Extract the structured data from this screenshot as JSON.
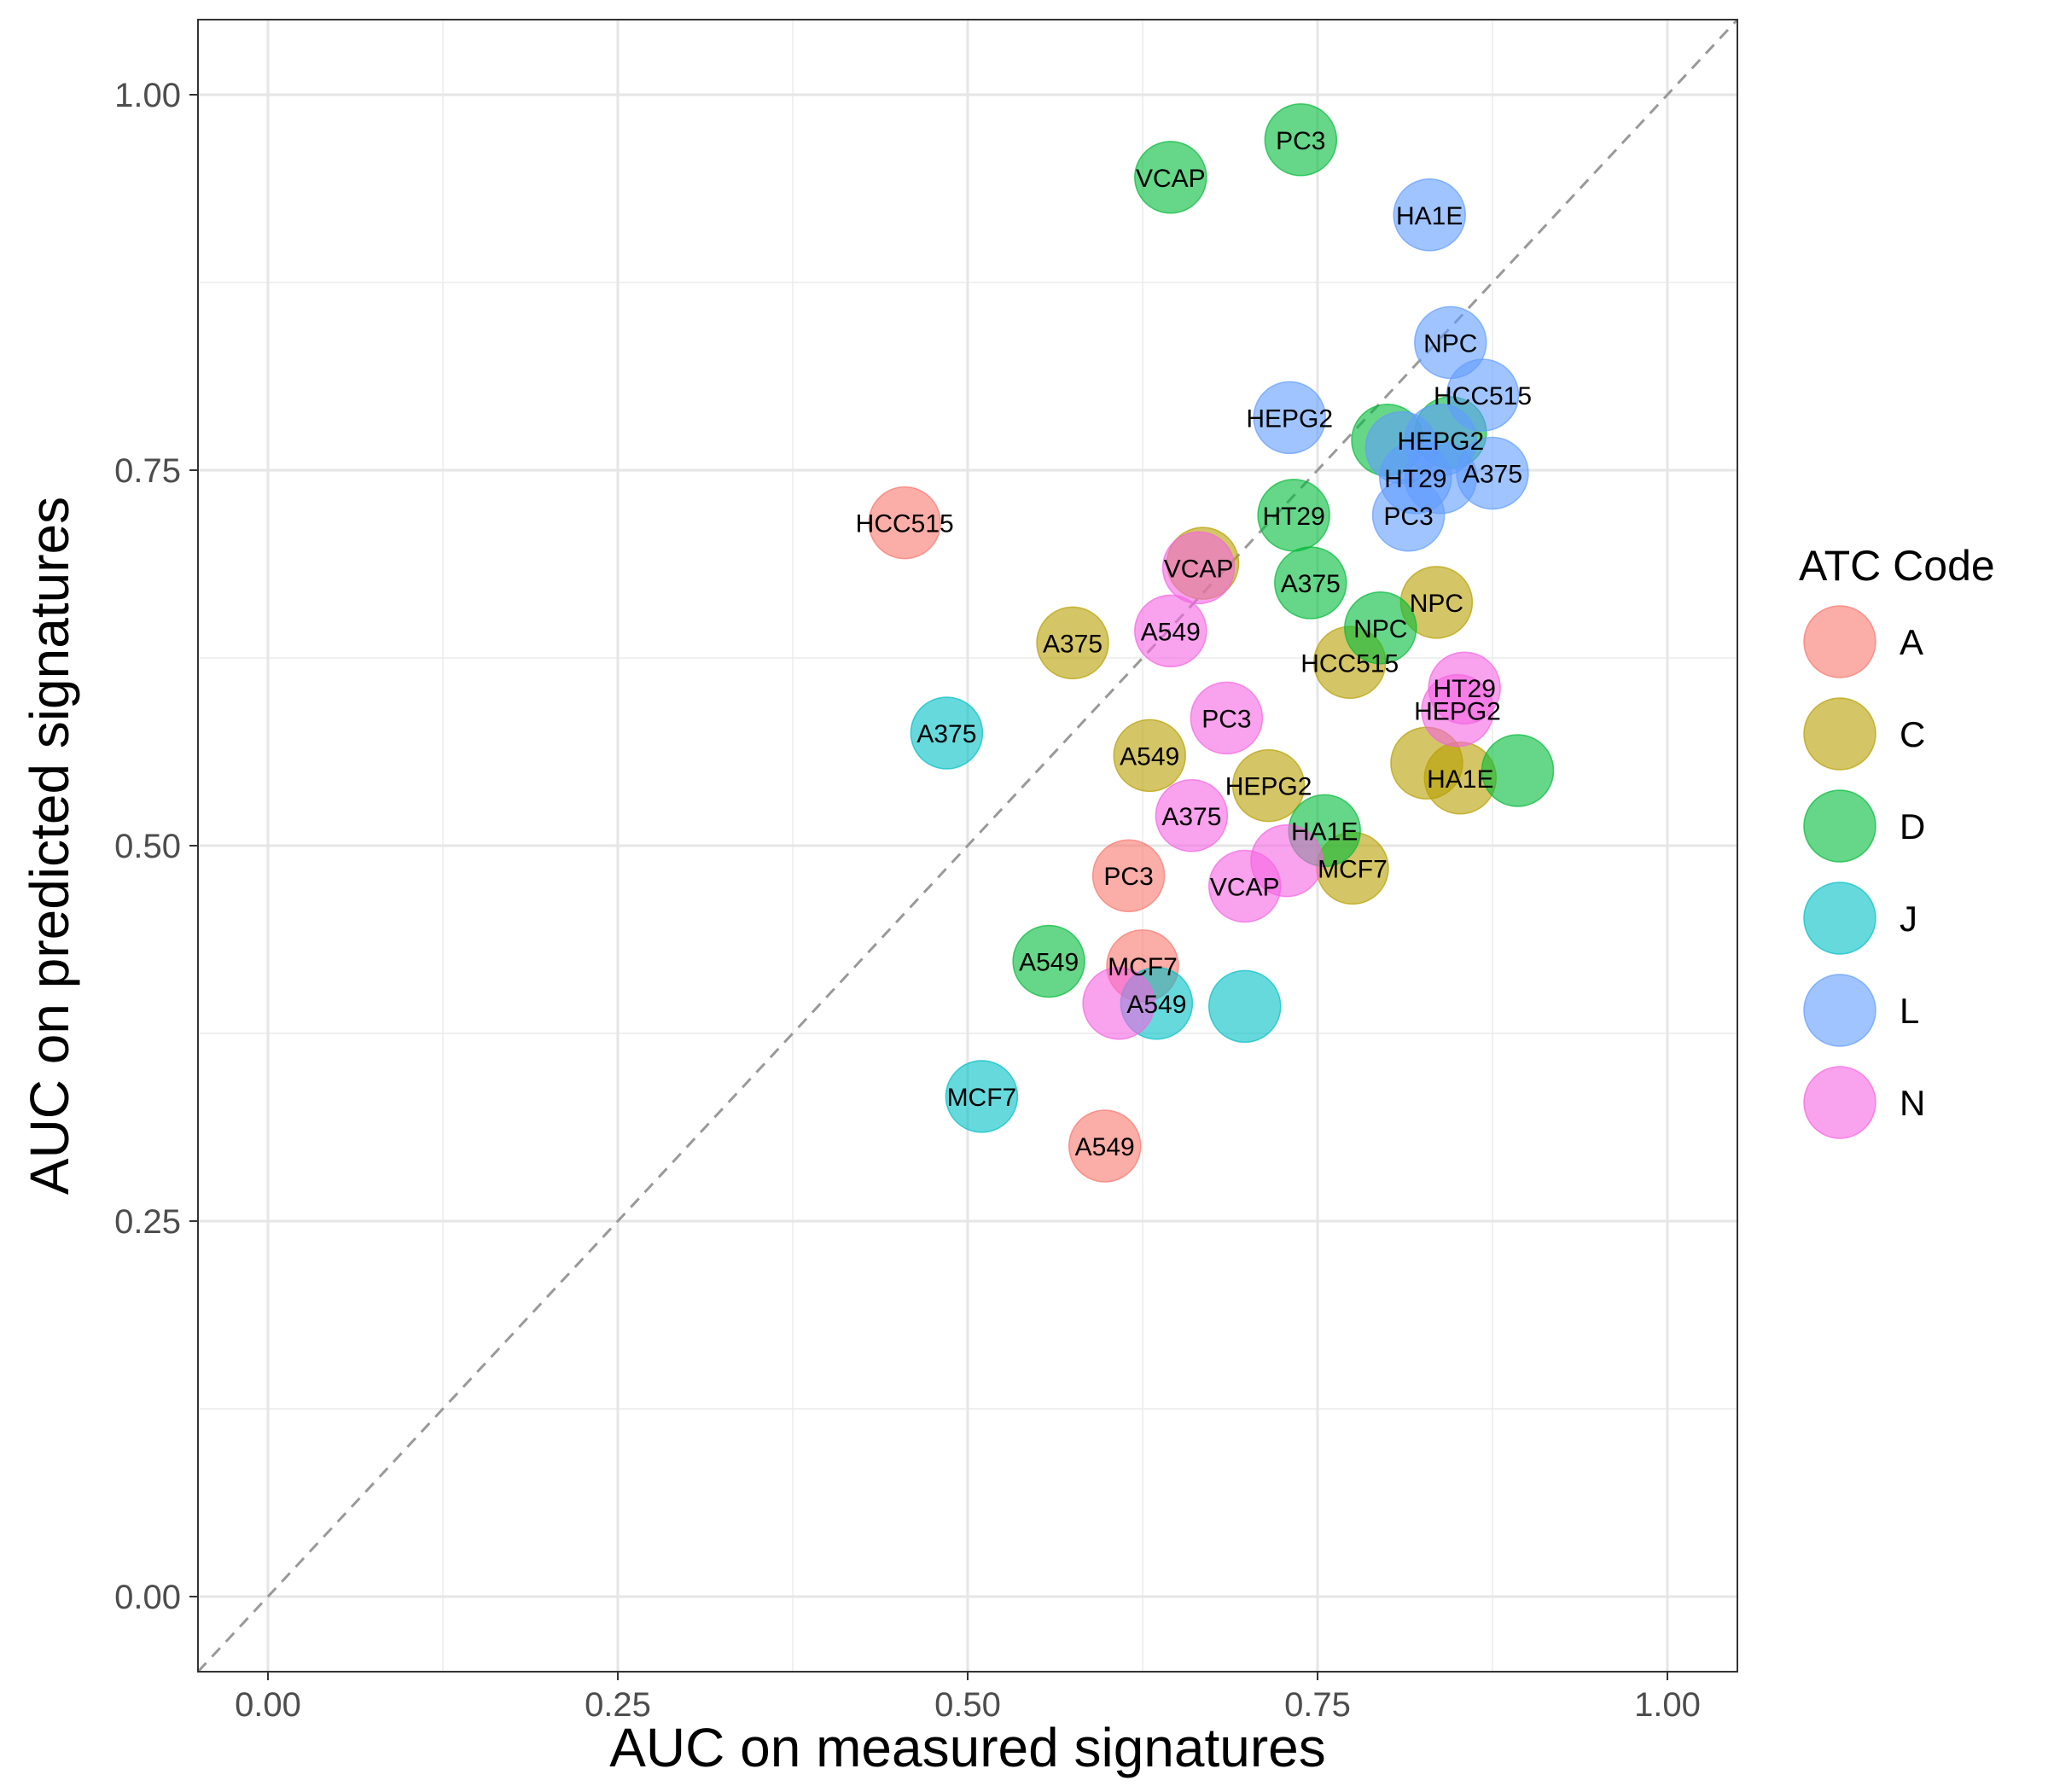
{
  "chart_data": {
    "type": "scatter",
    "xlabel": "AUC on measured signatures",
    "ylabel": "AUC on predicted signatures",
    "xlim": [
      -0.05,
      1.05
    ],
    "ylim": [
      -0.05,
      1.05
    ],
    "xticks": [
      "0.00",
      "0.25",
      "0.50",
      "0.75",
      "1.00"
    ],
    "yticks": [
      "0.00",
      "0.25",
      "0.50",
      "0.75",
      "1.00"
    ],
    "grid": true,
    "reference_line": "y = x (dashed)",
    "legend": {
      "title": "ATC Code",
      "position": "right",
      "entries": [
        {
          "key": "A",
          "label": "A",
          "color": "#F8766D"
        },
        {
          "key": "C",
          "label": "C",
          "color": "#B79F00"
        },
        {
          "key": "D",
          "label": "D",
          "color": "#00BA38"
        },
        {
          "key": "J",
          "label": "J",
          "color": "#00BFC4"
        },
        {
          "key": "L",
          "label": "L",
          "color": "#619CFF"
        },
        {
          "key": "N",
          "label": "N",
          "color": "#F564E3"
        }
      ]
    },
    "points": [
      {
        "x": 0.455,
        "y": 0.715,
        "group": "A",
        "label": "HCC515"
      },
      {
        "x": 0.615,
        "y": 0.48,
        "group": "A",
        "label": "PC3"
      },
      {
        "x": 0.625,
        "y": 0.42,
        "group": "A",
        "label": "MCF7"
      },
      {
        "x": 0.598,
        "y": 0.3,
        "group": "A",
        "label": "A549"
      },
      {
        "x": 0.575,
        "y": 0.635,
        "group": "C",
        "label": "A375"
      },
      {
        "x": 0.63,
        "y": 0.56,
        "group": "C",
        "label": "A549"
      },
      {
        "x": 0.668,
        "y": 0.688,
        "group": "C",
        "label": ""
      },
      {
        "x": 0.715,
        "y": 0.54,
        "group": "C",
        "label": "HEPG2"
      },
      {
        "x": 0.773,
        "y": 0.622,
        "group": "C",
        "label": "HCC515"
      },
      {
        "x": 0.775,
        "y": 0.485,
        "group": "C",
        "label": "MCF7"
      },
      {
        "x": 0.835,
        "y": 0.662,
        "group": "C",
        "label": "NPC"
      },
      {
        "x": 0.828,
        "y": 0.555,
        "group": "C",
        "label": ""
      },
      {
        "x": 0.852,
        "y": 0.545,
        "group": "C",
        "label": "HA1E"
      },
      {
        "x": 0.645,
        "y": 0.945,
        "group": "D",
        "label": "VCAP"
      },
      {
        "x": 0.738,
        "y": 0.97,
        "group": "D",
        "label": "PC3"
      },
      {
        "x": 0.733,
        "y": 0.72,
        "group": "D",
        "label": "HT29"
      },
      {
        "x": 0.745,
        "y": 0.675,
        "group": "D",
        "label": "A375"
      },
      {
        "x": 0.795,
        "y": 0.645,
        "group": "D",
        "label": "NPC"
      },
      {
        "x": 0.755,
        "y": 0.51,
        "group": "D",
        "label": "HA1E"
      },
      {
        "x": 0.558,
        "y": 0.423,
        "group": "D",
        "label": "A549"
      },
      {
        "x": 0.893,
        "y": 0.55,
        "group": "D",
        "label": ""
      },
      {
        "x": 0.8,
        "y": 0.77,
        "group": "D",
        "label": ""
      },
      {
        "x": 0.845,
        "y": 0.775,
        "group": "D",
        "label": ""
      },
      {
        "x": 0.485,
        "y": 0.575,
        "group": "J",
        "label": "A375"
      },
      {
        "x": 0.635,
        "y": 0.395,
        "group": "J",
        "label": "A549"
      },
      {
        "x": 0.698,
        "y": 0.393,
        "group": "J",
        "label": ""
      },
      {
        "x": 0.51,
        "y": 0.333,
        "group": "J",
        "label": "MCF7"
      },
      {
        "x": 0.83,
        "y": 0.92,
        "group": "L",
        "label": "HA1E"
      },
      {
        "x": 0.845,
        "y": 0.835,
        "group": "L",
        "label": "NPC"
      },
      {
        "x": 0.868,
        "y": 0.8,
        "group": "L",
        "label": "HCC515"
      },
      {
        "x": 0.73,
        "y": 0.785,
        "group": "L",
        "label": "HEPG2"
      },
      {
        "x": 0.81,
        "y": 0.765,
        "group": "L",
        "label": ""
      },
      {
        "x": 0.838,
        "y": 0.77,
        "group": "L",
        "label": "HEPG2"
      },
      {
        "x": 0.82,
        "y": 0.745,
        "group": "L",
        "label": "HT29"
      },
      {
        "x": 0.838,
        "y": 0.745,
        "group": "L",
        "label": ""
      },
      {
        "x": 0.875,
        "y": 0.748,
        "group": "L",
        "label": "A375"
      },
      {
        "x": 0.815,
        "y": 0.72,
        "group": "L",
        "label": "PC3"
      },
      {
        "x": 0.665,
        "y": 0.685,
        "group": "N",
        "label": "VCAP"
      },
      {
        "x": 0.645,
        "y": 0.643,
        "group": "N",
        "label": "A549"
      },
      {
        "x": 0.685,
        "y": 0.585,
        "group": "N",
        "label": "PC3"
      },
      {
        "x": 0.66,
        "y": 0.52,
        "group": "N",
        "label": "A375"
      },
      {
        "x": 0.698,
        "y": 0.473,
        "group": "N",
        "label": "VCAP"
      },
      {
        "x": 0.728,
        "y": 0.49,
        "group": "N",
        "label": ""
      },
      {
        "x": 0.608,
        "y": 0.395,
        "group": "N",
        "label": ""
      },
      {
        "x": 0.855,
        "y": 0.605,
        "group": "N",
        "label": "HT29"
      },
      {
        "x": 0.85,
        "y": 0.59,
        "group": "N",
        "label": "HEPG2"
      }
    ]
  }
}
